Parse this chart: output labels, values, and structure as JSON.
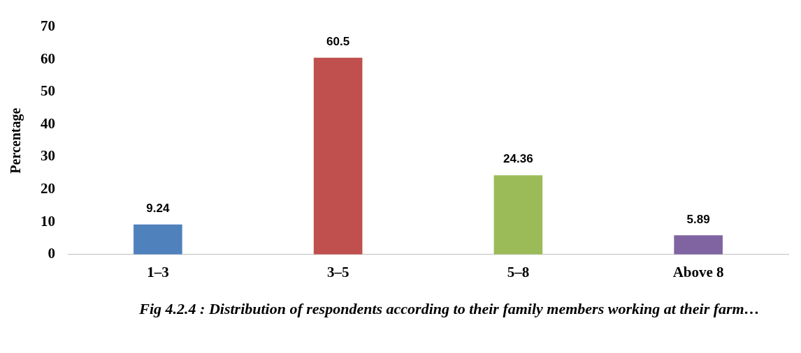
{
  "chart_data": {
    "type": "bar",
    "ylabel": "Percentage",
    "categories": [
      "1–3",
      "3–5",
      "5–8",
      "Above 8"
    ],
    "values": [
      9.24,
      60.5,
      24.36,
      5.89
    ],
    "colors": [
      "#4f81bd",
      "#c0504d",
      "#9bbb59",
      "#8064a2"
    ],
    "ylim": [
      0,
      70
    ],
    "yticks": [
      0,
      10,
      20,
      30,
      40,
      50,
      60,
      70
    ],
    "grid": false,
    "legend": false,
    "data_labels": true,
    "annotations": [
      "Fig 4.2.4 : Distribution of respondents according to their family members working at their farm…"
    ]
  }
}
